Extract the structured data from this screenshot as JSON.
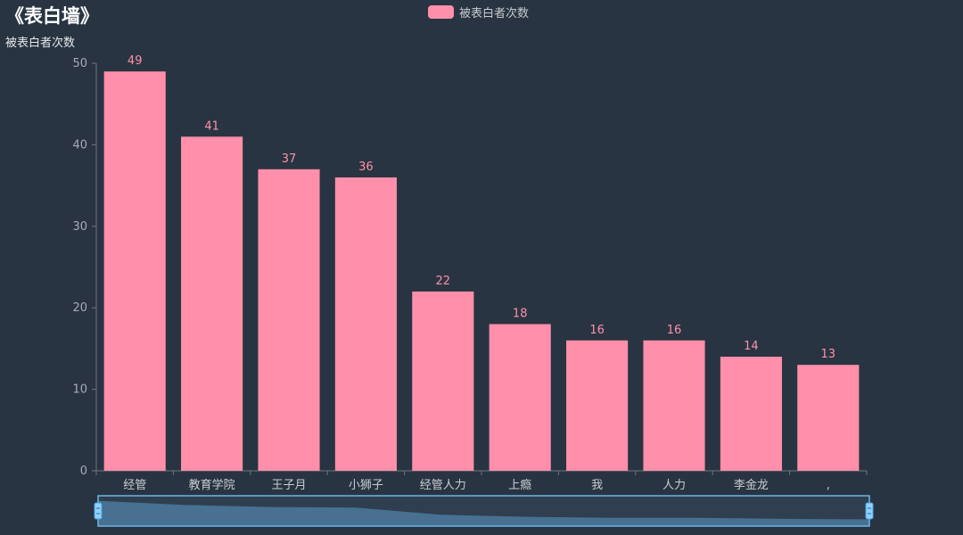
{
  "colors": {
    "background": "#283441",
    "bar": "#ff8fab",
    "axis": "#6e7680",
    "zoom_fill": "#4a7698",
    "zoom_border": "#6fb5e8"
  },
  "legend": {
    "label": "被表白者次数"
  },
  "chart_data": {
    "type": "bar",
    "title": "《表白墙》",
    "ylabel": "被表白者次数",
    "xlabel": "",
    "categories": [
      "经管",
      "教育学院",
      "王子月",
      "小狮子",
      "经管人力",
      "上瘾",
      "我",
      "人力",
      "李金龙",
      ","
    ],
    "series": [
      {
        "name": "被表白者次数",
        "values": [
          49,
          41,
          37,
          36,
          22,
          18,
          16,
          16,
          14,
          13
        ]
      }
    ],
    "ylim": [
      0,
      50
    ],
    "yticks": [
      0,
      10,
      20,
      30,
      40,
      50
    ],
    "show_data_labels": true,
    "grid": false,
    "legend_position": "top-center",
    "has_zoom_slider": true
  }
}
